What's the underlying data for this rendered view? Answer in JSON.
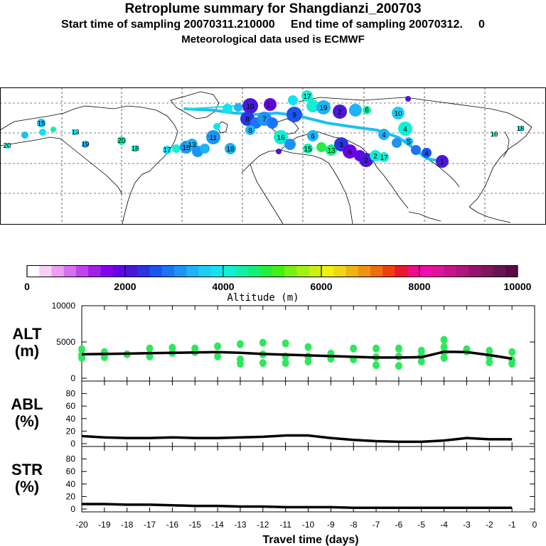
{
  "header": {
    "title": "Retroplume summary for Shangdianzi_200703",
    "sampling": "Start time of sampling 20070311.210000     End time of sampling 20070312.     0",
    "met": "Meteorological data used is ECMWF"
  },
  "colorbar": {
    "label": "Altitude (m)",
    "ticks": [
      "0",
      "2000",
      "4000",
      "6000",
      "8000",
      "10000"
    ],
    "colors": [
      "#ffffff",
      "#f6d0f6",
      "#ec9ff0",
      "#d770ee",
      "#c044ea",
      "#a31ee6",
      "#8600f0",
      "#6800e6",
      "#4818d8",
      "#2a34e0",
      "#1a54f0",
      "#1c74f4",
      "#1c94f4",
      "#1cb4f4",
      "#1ccef4",
      "#10e4f0",
      "#10f0d4",
      "#10f0a8",
      "#10f07c",
      "#20f040",
      "#44f010",
      "#78f010",
      "#a4f010",
      "#ccf010",
      "#f0f010",
      "#f0d810",
      "#f0b410",
      "#f09410",
      "#f06c10",
      "#f04010",
      "#e81830",
      "#f00a8c",
      "#f00ab0",
      "#e0149c",
      "#c8148c",
      "#b0147c",
      "#98146c",
      "#80145c",
      "#681450",
      "#580a48"
    ]
  },
  "map": {
    "trajectory_labels": [
      "1",
      "2",
      "3",
      "4",
      "5",
      "6",
      "7",
      "8",
      "9",
      "10",
      "11",
      "12",
      "13",
      "14",
      "15",
      "16",
      "17",
      "18",
      "19",
      "20"
    ]
  },
  "chart_data": [
    {
      "type": "line",
      "name": "ALT",
      "ylabel": "ALT\n(m)",
      "ylim": [
        0,
        10000
      ],
      "yticks": [
        "0",
        "5000",
        "10000"
      ],
      "x": [
        -20,
        -19,
        -18,
        -17,
        -16,
        -15,
        -14,
        -13,
        -12,
        -11,
        -10,
        -9,
        -8,
        -7,
        -6,
        -5,
        -4,
        -3,
        -2,
        -1
      ],
      "series": [
        {
          "name": "median altitude",
          "values": [
            3300,
            3350,
            3400,
            3450,
            3500,
            3550,
            3600,
            3500,
            3350,
            3250,
            3150,
            3050,
            2950,
            2850,
            2850,
            2900,
            3650,
            3600,
            3200,
            2700
          ]
        }
      ],
      "scatter_points": [
        [
          -20,
          3200
        ],
        [
          -20,
          4000
        ],
        [
          -20,
          2800
        ],
        [
          -19,
          3600
        ],
        [
          -19,
          2900
        ],
        [
          -18,
          3300
        ],
        [
          -17,
          4100
        ],
        [
          -17,
          3000
        ],
        [
          -16,
          4200
        ],
        [
          -16,
          3500
        ],
        [
          -15,
          4100
        ],
        [
          -15,
          3600
        ],
        [
          -14,
          4400
        ],
        [
          -14,
          3000
        ],
        [
          -13,
          4700
        ],
        [
          -13,
          2600
        ],
        [
          -13,
          2000
        ],
        [
          -12,
          4900
        ],
        [
          -12,
          3300
        ],
        [
          -12,
          2100
        ],
        [
          -11,
          4800
        ],
        [
          -11,
          3000
        ],
        [
          -11,
          2100
        ],
        [
          -10,
          4300
        ],
        [
          -10,
          3000
        ],
        [
          -10,
          2300
        ],
        [
          -9,
          3400
        ],
        [
          -9,
          2700
        ],
        [
          -8,
          4100
        ],
        [
          -8,
          2600
        ],
        [
          -7,
          4100
        ],
        [
          -7,
          2900
        ],
        [
          -7,
          1800
        ],
        [
          -6,
          4100
        ],
        [
          -6,
          3000
        ],
        [
          -6,
          1700
        ],
        [
          -5,
          3800
        ],
        [
          -5,
          3100
        ],
        [
          -5,
          2300
        ],
        [
          -4,
          4300
        ],
        [
          -4,
          3600
        ],
        [
          -4,
          2800
        ],
        [
          -4,
          5300
        ],
        [
          -3,
          4000
        ],
        [
          -3,
          3700
        ],
        [
          -2,
          3800
        ],
        [
          -2,
          3000
        ],
        [
          -2,
          2200
        ],
        [
          -1,
          3600
        ],
        [
          -1,
          2500
        ],
        [
          -1,
          2000
        ]
      ]
    },
    {
      "type": "line",
      "name": "ABL",
      "ylabel": "ABL\n(%)",
      "ylim": [
        0,
        100
      ],
      "yticks": [
        "0",
        "20",
        "40",
        "60",
        "80"
      ],
      "x": [
        -20,
        -19,
        -18,
        -17,
        -16,
        -15,
        -14,
        -13,
        -12,
        -11,
        -10,
        -9,
        -8,
        -7,
        -6,
        -5,
        -4,
        -3,
        -2,
        -1
      ],
      "values": [
        12,
        10,
        9,
        9,
        10,
        9,
        9,
        10,
        11,
        13,
        13,
        9,
        6,
        4,
        3,
        3,
        5,
        9,
        7,
        7
      ]
    },
    {
      "type": "line",
      "name": "STR",
      "ylabel": "STR\n(%)",
      "ylim": [
        0,
        100
      ],
      "yticks": [
        "0",
        "20",
        "40",
        "60",
        "80"
      ],
      "x": [
        -20,
        -19,
        -18,
        -17,
        -16,
        -15,
        -14,
        -13,
        -12,
        -11,
        -10,
        -9,
        -8,
        -7,
        -6,
        -5,
        -4,
        -3,
        -2,
        -1
      ],
      "values": [
        8,
        8,
        7,
        7,
        6,
        5,
        5,
        4,
        4,
        3,
        3,
        3,
        2,
        2,
        2,
        2,
        2,
        2,
        2,
        2
      ],
      "xlabel": "Travel time (days)",
      "xticks": [
        "-20",
        "-19",
        "-18",
        "-17",
        "-16",
        "-15",
        "-14",
        "-13",
        "-12",
        "-11",
        "-10",
        "-9",
        "-8",
        "-7",
        "-6",
        "-5",
        "-4",
        "-3",
        "-2",
        "-1",
        "0"
      ]
    }
  ]
}
